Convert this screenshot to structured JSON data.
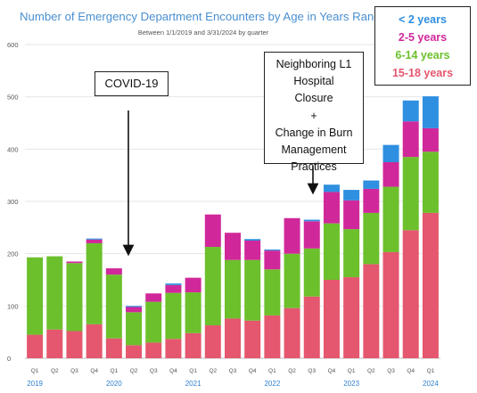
{
  "header": {
    "title": "Number of Emergency Department Encounters by Age in Years Range",
    "subtitle": "Between 1/1/2019 and 3/31/2024 by quarter"
  },
  "legend": {
    "items": [
      {
        "label": "< 2 years",
        "color": "#2f8fe0"
      },
      {
        "label": "2-5 years",
        "color": "#d0289a"
      },
      {
        "label": "6-14 years",
        "color": "#6cc02c"
      },
      {
        "label": "15-18 years",
        "color": "#e4576e"
      }
    ]
  },
  "annotations": {
    "covid": {
      "label": "COVID-19"
    },
    "closure": {
      "lines": [
        "Neighboring L1",
        "Hospital",
        "Closure",
        "+",
        "Change in Burn",
        "Management",
        "Practices"
      ]
    }
  },
  "chart_data": {
    "type": "bar",
    "stacked": true,
    "title": "Number of Emergency Department Encounters by Age in Years Range",
    "subtitle": "Between 1/1/2019 and 3/31/2024 by quarter",
    "xlabel": "",
    "ylabel": "",
    "ylim": [
      0,
      600
    ],
    "yticks": [
      0,
      100,
      200,
      300,
      400,
      500,
      600
    ],
    "grid": true,
    "legend_position": "top-right",
    "categories": [
      "Q1",
      "Q2",
      "Q3",
      "Q4",
      "Q1",
      "Q2",
      "Q3",
      "Q4",
      "Q1",
      "Q2",
      "Q3",
      "Q4",
      "Q1",
      "Q2",
      "Q3",
      "Q4",
      "Q1",
      "Q2",
      "Q3",
      "Q4",
      "Q1"
    ],
    "years": [
      {
        "label": "2019",
        "index": 0
      },
      {
        "label": "2020",
        "index": 4
      },
      {
        "label": "2021",
        "index": 8
      },
      {
        "label": "2022",
        "index": 12
      },
      {
        "label": "2023",
        "index": 16
      },
      {
        "label": "2024",
        "index": 20
      }
    ],
    "series": [
      {
        "name": "15-18 years",
        "color": "#e4576e",
        "values": [
          45,
          55,
          52,
          65,
          38,
          25,
          30,
          37,
          48,
          63,
          76,
          72,
          82,
          96,
          118,
          150,
          155,
          180,
          203,
          245,
          278
        ]
      },
      {
        "name": "6-14 years",
        "color": "#6cc02c",
        "values": [
          148,
          140,
          130,
          155,
          122,
          63,
          78,
          88,
          78,
          150,
          112,
          116,
          88,
          104,
          92,
          108,
          92,
          98,
          125,
          140,
          117
        ]
      },
      {
        "name": "2-5 years",
        "color": "#d0289a",
        "values": [
          0,
          0,
          3,
          7,
          12,
          10,
          16,
          15,
          28,
          62,
          52,
          37,
          36,
          68,
          52,
          60,
          55,
          46,
          47,
          68,
          45
        ]
      },
      {
        "name": "< 2 years",
        "color": "#2f8fe0",
        "values": [
          0,
          0,
          0,
          2,
          0,
          2,
          0,
          3,
          0,
          0,
          0,
          3,
          2,
          0,
          3,
          14,
          20,
          16,
          33,
          40,
          61
        ]
      }
    ]
  }
}
